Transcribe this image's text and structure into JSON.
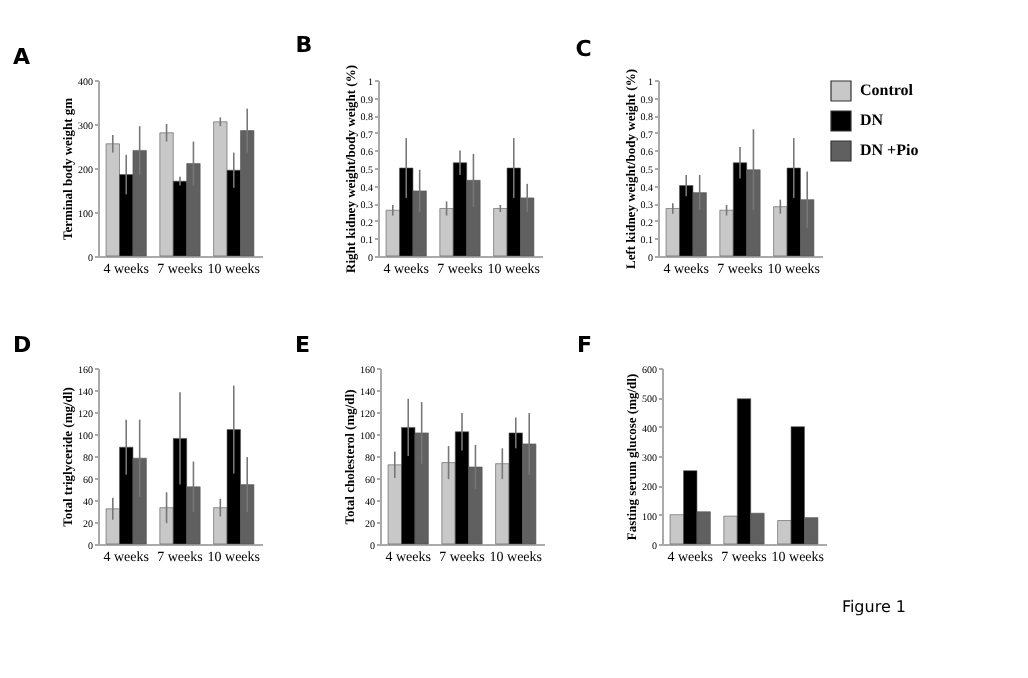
{
  "chart_data": [
    {
      "type": "bar",
      "title": "A",
      "ylabel": "Terminal body weight gm",
      "categories": [
        "4 weeks",
        "7 weeks",
        "10 weeks"
      ],
      "ylim": [
        0,
        400
      ],
      "yticks": [
        0,
        100,
        200,
        300,
        400
      ],
      "series": [
        {
          "color": "#c8c8c8",
          "values": [
            255,
            280,
            305
          ],
          "errors": [
            20,
            20,
            10
          ]
        },
        {
          "color": "#000000",
          "values": [
            185,
            170,
            195
          ],
          "errors": [
            45,
            10,
            40
          ]
        },
        {
          "color": "#606060",
          "values": [
            240,
            210,
            285
          ],
          "errors": [
            55,
            50,
            50
          ]
        }
      ]
    },
    {
      "type": "bar",
      "title": "B",
      "ylabel": "Right kidney weight/body weight (%)",
      "categories": [
        "4 weeks",
        "7 weeks",
        "10 weeks"
      ],
      "ylim": [
        0,
        1
      ],
      "yticks": [
        0,
        0.1,
        0.2,
        0.3,
        0.4,
        0.5,
        0.6,
        0.7,
        0.8,
        0.9,
        1
      ],
      "series": [
        {
          "color": "#c8c8c8",
          "values": [
            0.26,
            0.27,
            0.27
          ],
          "errors": [
            0.03,
            0.04,
            0.02
          ]
        },
        {
          "color": "#000000",
          "values": [
            0.5,
            0.53,
            0.5
          ],
          "errors": [
            0.17,
            0.07,
            0.17
          ]
        },
        {
          "color": "#606060",
          "values": [
            0.37,
            0.43,
            0.33
          ],
          "errors": [
            0.12,
            0.15,
            0.08
          ]
        }
      ]
    },
    {
      "type": "bar",
      "title": "C",
      "ylabel": "Left kidney weight/body weight (%)",
      "categories": [
        "4 weeks",
        "7 weeks",
        "10 weeks"
      ],
      "ylim": [
        0,
        1
      ],
      "yticks": [
        0,
        0.1,
        0.2,
        0.3,
        0.4,
        0.5,
        0.6,
        0.7,
        0.8,
        0.9,
        1
      ],
      "legend": "top right",
      "series": [
        {
          "name": "Control",
          "color": "#c8c8c8",
          "values": [
            0.27,
            0.26,
            0.28
          ],
          "errors": [
            0.03,
            0.03,
            0.04
          ]
        },
        {
          "name": "DN",
          "color": "#000000",
          "values": [
            0.4,
            0.53,
            0.5
          ],
          "errors": [
            0.06,
            0.09,
            0.17
          ]
        },
        {
          "name": "DN +Pio",
          "color": "#606060",
          "values": [
            0.36,
            0.49,
            0.32
          ],
          "errors": [
            0.1,
            0.23,
            0.16
          ]
        }
      ]
    },
    {
      "type": "bar",
      "title": "D",
      "ylabel": "Total triglyceride (mg/dl)",
      "categories": [
        "4 weeks",
        "7 weeks",
        "10 weeks"
      ],
      "ylim": [
        0,
        160
      ],
      "yticks": [
        0,
        20,
        40,
        60,
        80,
        100,
        120,
        140,
        160
      ],
      "series": [
        {
          "color": "#c8c8c8",
          "values": [
            32,
            33,
            33
          ],
          "errors": [
            10,
            14,
            8
          ]
        },
        {
          "color": "#000000",
          "values": [
            88,
            96,
            104
          ],
          "errors": [
            25,
            42,
            40
          ]
        },
        {
          "color": "#606060",
          "values": [
            78,
            52,
            54
          ],
          "errors": [
            35,
            23,
            25
          ]
        }
      ]
    },
    {
      "type": "bar",
      "title": "E",
      "ylabel": "Total cholesterol (mg/dl)",
      "categories": [
        "4 weeks",
        "7 weeks",
        "10 weeks"
      ],
      "ylim": [
        0,
        160
      ],
      "yticks": [
        0,
        20,
        40,
        60,
        80,
        100,
        120,
        140,
        160
      ],
      "series": [
        {
          "color": "#c8c8c8",
          "values": [
            72,
            74,
            73
          ],
          "errors": [
            12,
            15,
            14
          ]
        },
        {
          "color": "#000000",
          "values": [
            106,
            102,
            101
          ],
          "errors": [
            26,
            17,
            14
          ]
        },
        {
          "color": "#606060",
          "values": [
            101,
            70,
            91
          ],
          "errors": [
            28,
            20,
            28
          ]
        }
      ]
    },
    {
      "type": "bar",
      "title": "F",
      "ylabel": "Fasting serum glucose (mg/dl)",
      "categories": [
        "4 weeks",
        "7 weeks",
        "10 weeks"
      ],
      "ylim": [
        0,
        600
      ],
      "yticks": [
        0,
        100,
        200,
        300,
        400,
        500,
        600
      ],
      "annotations": [
        "Figure 1"
      ],
      "series": [
        {
          "color": "#c8c8c8",
          "values": [
            100,
            95,
            80
          ]
        },
        {
          "color": "#000000",
          "values": [
            250,
            495,
            400
          ]
        },
        {
          "color": "#606060",
          "values": [
            110,
            105,
            90
          ]
        }
      ]
    }
  ]
}
